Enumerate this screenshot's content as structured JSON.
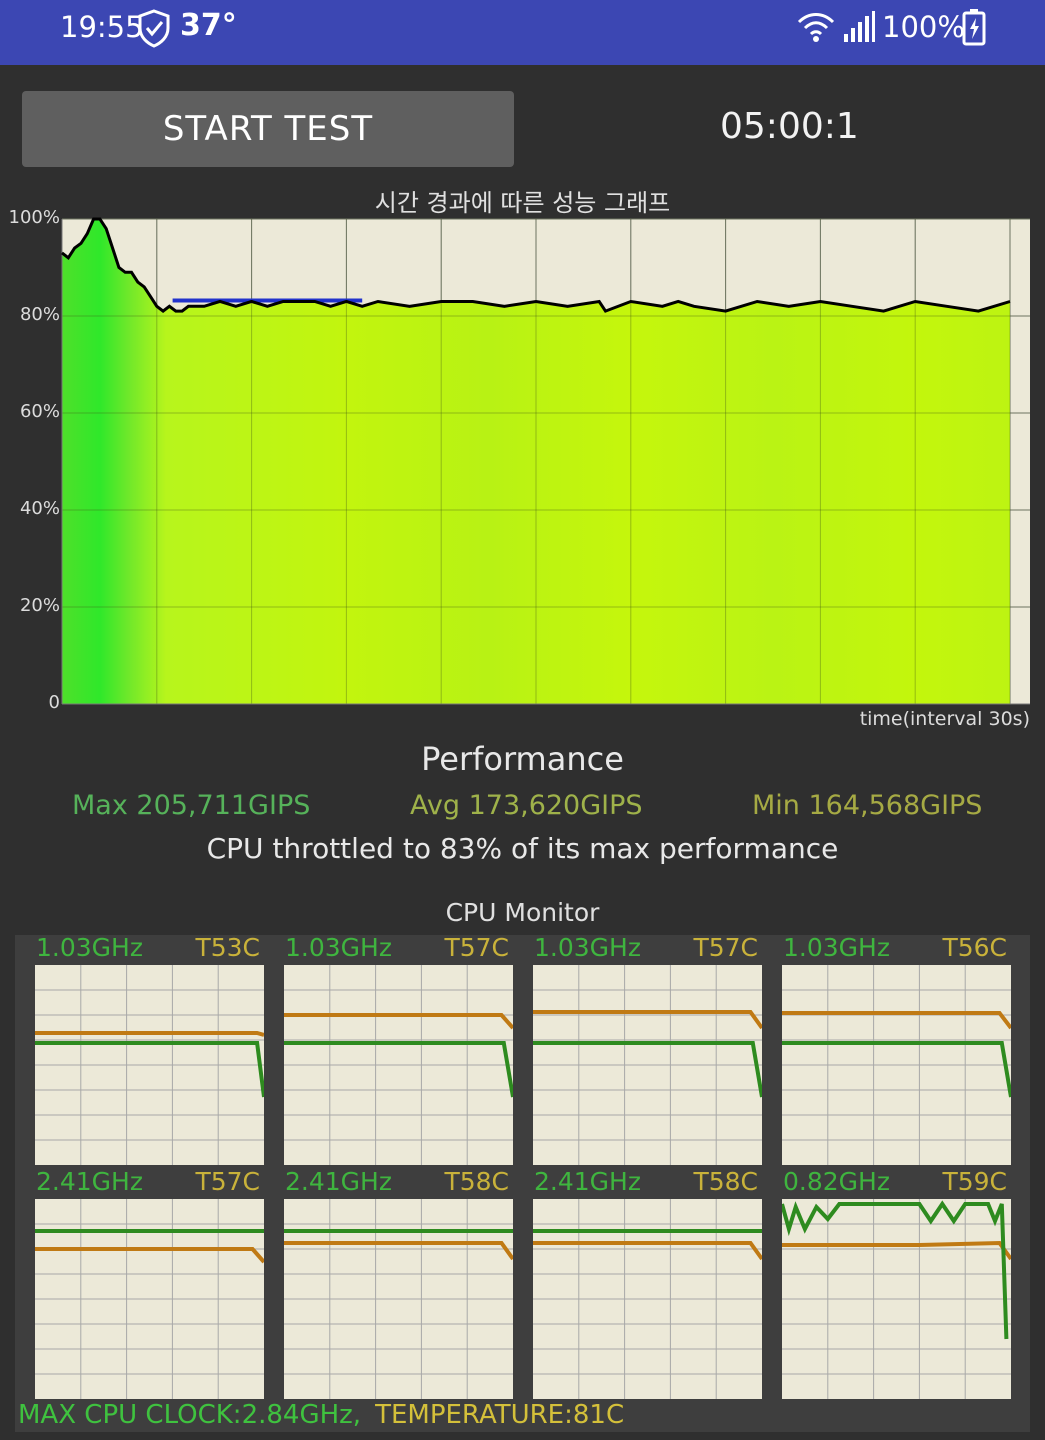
{
  "status_bar": {
    "time": "19:55",
    "temperature": "37°",
    "battery": "100%",
    "icons": [
      "shield-check-icon",
      "wifi-icon",
      "signal-icon",
      "battery-charging-icon"
    ]
  },
  "controls": {
    "start_label": "START TEST",
    "timer": "05:00:1"
  },
  "graph": {
    "title": "시간 경과에 따른 성능 그래프",
    "y_ticks": [
      "100%",
      "80%",
      "60%",
      "40%",
      "20%",
      "0"
    ],
    "x_label": "time(interval 30s)"
  },
  "performance": {
    "title": "Performance",
    "max": "Max 205,711GIPS",
    "avg": "Avg 173,620GIPS",
    "min": "Min 164,568GIPS",
    "throttle": "CPU throttled to 83% of its max performance"
  },
  "cpu_monitor": {
    "title": "CPU Monitor",
    "cores": [
      {
        "freq": "1.03GHz",
        "temp": "T53C"
      },
      {
        "freq": "1.03GHz",
        "temp": "T57C"
      },
      {
        "freq": "1.03GHz",
        "temp": "T57C"
      },
      {
        "freq": "1.03GHz",
        "temp": "T56C"
      },
      {
        "freq": "2.41GHz",
        "temp": "T57C"
      },
      {
        "freq": "2.41GHz",
        "temp": "T58C"
      },
      {
        "freq": "2.41GHz",
        "temp": "T58C"
      },
      {
        "freq": "0.82GHz",
        "temp": "T59C"
      }
    ],
    "max_clock": "MAX CPU CLOCK:2.84GHz,",
    "temperature": "TEMPERATURE:81C"
  },
  "colors": {
    "status_bar": "#3c47b3",
    "perf_line": "#000000",
    "max_line": "#2233cc",
    "freq_line": "#2e8b1f",
    "temp_line": "#c07a14"
  },
  "chart_data": {
    "type": "area",
    "title": "시간 경과에 따른 성능 그래프",
    "xlabel": "time(interval 30s)",
    "ylabel": "",
    "ylim": [
      0,
      100
    ],
    "y_ticks": [
      "0",
      "20%",
      "40%",
      "60%",
      "80%",
      "100%"
    ],
    "x_interval_s": 30,
    "x_max_s": 300,
    "series": [
      {
        "values": [
          [
            0,
            93
          ],
          [
            2,
            92
          ],
          [
            4,
            94
          ],
          [
            6,
            95
          ],
          [
            8,
            97
          ],
          [
            10,
            100
          ],
          [
            12,
            100
          ],
          [
            14,
            98
          ],
          [
            16,
            94
          ],
          [
            18,
            90
          ],
          [
            20,
            89
          ],
          [
            22,
            89
          ],
          [
            24,
            87
          ],
          [
            26,
            86
          ],
          [
            28,
            84
          ],
          [
            30,
            82
          ],
          [
            32,
            81
          ],
          [
            34,
            82
          ],
          [
            36,
            81
          ],
          [
            38,
            81
          ],
          [
            40,
            82
          ],
          [
            45,
            82
          ],
          [
            50,
            83
          ],
          [
            55,
            82
          ],
          [
            60,
            83
          ],
          [
            65,
            82
          ],
          [
            70,
            83
          ],
          [
            75,
            83
          ],
          [
            80,
            83
          ],
          [
            85,
            82
          ],
          [
            90,
            83
          ],
          [
            95,
            82
          ],
          [
            100,
            83
          ],
          [
            110,
            82
          ],
          [
            120,
            83
          ],
          [
            130,
            83
          ],
          [
            140,
            82
          ],
          [
            150,
            83
          ],
          [
            160,
            82
          ],
          [
            170,
            83
          ],
          [
            172,
            81
          ],
          [
            180,
            83
          ],
          [
            190,
            82
          ],
          [
            195,
            83
          ],
          [
            200,
            82
          ],
          [
            210,
            81
          ],
          [
            220,
            83
          ],
          [
            230,
            82
          ],
          [
            240,
            83
          ],
          [
            250,
            82
          ],
          [
            260,
            81
          ],
          [
            270,
            83
          ],
          [
            280,
            82
          ],
          [
            290,
            81
          ],
          [
            300,
            83
          ]
        ]
      }
    ]
  }
}
